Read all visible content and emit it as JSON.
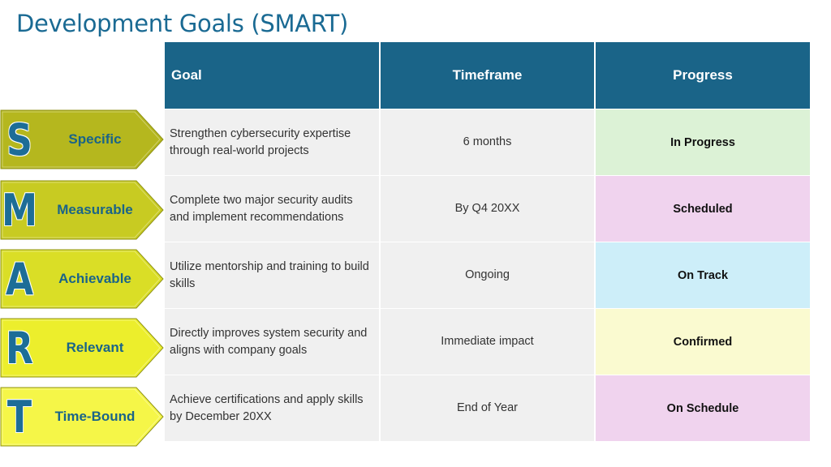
{
  "title": "Development Goals (SMART)",
  "headers": {
    "goal": "Goal",
    "timeframe": "Timeframe",
    "progress": "Progress"
  },
  "smart": [
    {
      "letter": "S",
      "label": "Specific",
      "color": "#b5b71e"
    },
    {
      "letter": "M",
      "label": "Measurable",
      "color": "#c8cb22"
    },
    {
      "letter": "A",
      "label": "Achievable",
      "color": "#dade26"
    },
    {
      "letter": "R",
      "label": "Relevant",
      "color": "#ecee2c"
    },
    {
      "letter": "T",
      "label": "Time-Bound",
      "color": "#f5f648"
    }
  ],
  "rows": [
    {
      "goal": "Strengthen cybersecurity expertise through real-world projects",
      "timeframe": "6 months",
      "progress": "In Progress",
      "progress_color": "#dcf2d6"
    },
    {
      "goal": "Complete two major security audits and implement recommendations",
      "timeframe": "By Q4 20XX",
      "progress": "Scheduled",
      "progress_color": "#f0d3ee"
    },
    {
      "goal": "Utilize mentorship and training to build skills",
      "timeframe": "Ongoing",
      "progress": "On Track",
      "progress_color": "#cdeef9"
    },
    {
      "goal": "Directly improves system security and aligns with company goals",
      "timeframe": "Immediate impact",
      "progress": "Confirmed",
      "progress_color": "#fafad0"
    },
    {
      "goal": "Achieve certifications and apply skills by December 20XX",
      "timeframe": "End of Year",
      "progress": "On Schedule",
      "progress_color": "#f0d3ee"
    }
  ]
}
